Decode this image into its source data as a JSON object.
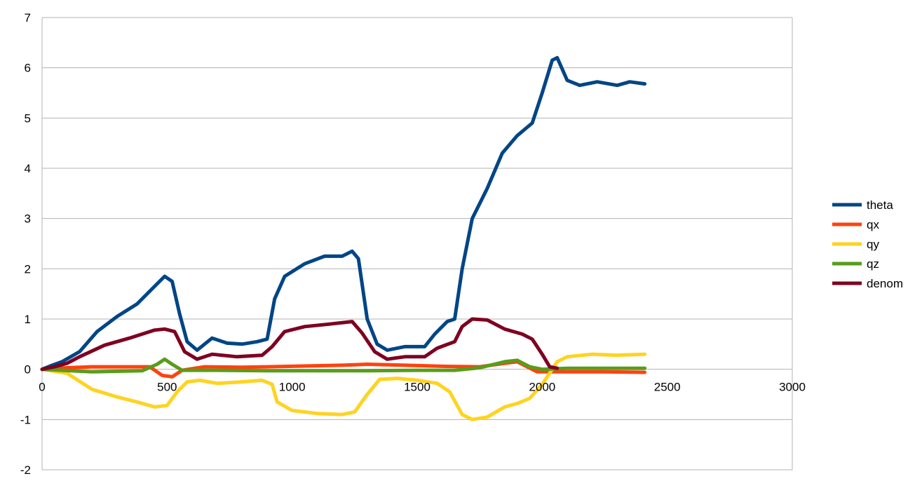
{
  "chart_data": {
    "type": "line",
    "title": "",
    "xlabel": "",
    "ylabel": "",
    "xlim": [
      0,
      3000
    ],
    "ylim": [
      -2,
      7
    ],
    "xticks": [
      0,
      500,
      1000,
      1500,
      2000,
      2500,
      3000
    ],
    "yticks": [
      -2,
      -1,
      0,
      1,
      2,
      3,
      4,
      5,
      6,
      7
    ],
    "grid": true,
    "legend_position": "right",
    "series": [
      {
        "name": "theta",
        "color": "#004586",
        "points": [
          [
            0,
            0
          ],
          [
            30,
            0.06
          ],
          [
            80,
            0.15
          ],
          [
            150,
            0.35
          ],
          [
            220,
            0.75
          ],
          [
            300,
            1.05
          ],
          [
            380,
            1.3
          ],
          [
            450,
            1.65
          ],
          [
            490,
            1.85
          ],
          [
            520,
            1.75
          ],
          [
            550,
            1.1
          ],
          [
            580,
            0.55
          ],
          [
            620,
            0.38
          ],
          [
            680,
            0.62
          ],
          [
            740,
            0.52
          ],
          [
            800,
            0.5
          ],
          [
            860,
            0.55
          ],
          [
            900,
            0.6
          ],
          [
            930,
            1.4
          ],
          [
            970,
            1.85
          ],
          [
            1050,
            2.1
          ],
          [
            1130,
            2.25
          ],
          [
            1200,
            2.25
          ],
          [
            1240,
            2.35
          ],
          [
            1265,
            2.2
          ],
          [
            1300,
            1.0
          ],
          [
            1340,
            0.5
          ],
          [
            1380,
            0.38
          ],
          [
            1450,
            0.45
          ],
          [
            1530,
            0.45
          ],
          [
            1570,
            0.7
          ],
          [
            1620,
            0.95
          ],
          [
            1650,
            1.0
          ],
          [
            1680,
            2.0
          ],
          [
            1720,
            3.0
          ],
          [
            1780,
            3.6
          ],
          [
            1840,
            4.3
          ],
          [
            1900,
            4.65
          ],
          [
            1960,
            4.9
          ],
          [
            2000,
            5.5
          ],
          [
            2040,
            6.15
          ],
          [
            2060,
            6.2
          ],
          [
            2100,
            5.75
          ],
          [
            2150,
            5.65
          ],
          [
            2220,
            5.72
          ],
          [
            2300,
            5.65
          ],
          [
            2350,
            5.72
          ],
          [
            2410,
            5.68
          ]
        ]
      },
      {
        "name": "qx",
        "color": "#ff420e",
        "points": [
          [
            0,
            0
          ],
          [
            100,
            0.03
          ],
          [
            200,
            0.05
          ],
          [
            350,
            0.05
          ],
          [
            430,
            0.05
          ],
          [
            480,
            -0.12
          ],
          [
            520,
            -0.15
          ],
          [
            560,
            -0.02
          ],
          [
            650,
            0.05
          ],
          [
            800,
            0.04
          ],
          [
            1000,
            0.06
          ],
          [
            1200,
            0.08
          ],
          [
            1300,
            0.1
          ],
          [
            1450,
            0.08
          ],
          [
            1600,
            0.06
          ],
          [
            1750,
            0.05
          ],
          [
            1850,
            0.12
          ],
          [
            1900,
            0.15
          ],
          [
            1940,
            0.05
          ],
          [
            1980,
            -0.05
          ],
          [
            2100,
            -0.05
          ],
          [
            2250,
            -0.05
          ],
          [
            2410,
            -0.06
          ]
        ]
      },
      {
        "name": "qy",
        "color": "#ffd320",
        "points": [
          [
            0,
            0
          ],
          [
            100,
            -0.08
          ],
          [
            200,
            -0.4
          ],
          [
            300,
            -0.55
          ],
          [
            380,
            -0.65
          ],
          [
            450,
            -0.75
          ],
          [
            500,
            -0.72
          ],
          [
            540,
            -0.45
          ],
          [
            580,
            -0.25
          ],
          [
            630,
            -0.22
          ],
          [
            700,
            -0.28
          ],
          [
            800,
            -0.25
          ],
          [
            880,
            -0.22
          ],
          [
            920,
            -0.3
          ],
          [
            940,
            -0.65
          ],
          [
            1000,
            -0.82
          ],
          [
            1100,
            -0.88
          ],
          [
            1200,
            -0.9
          ],
          [
            1250,
            -0.85
          ],
          [
            1300,
            -0.5
          ],
          [
            1350,
            -0.2
          ],
          [
            1420,
            -0.18
          ],
          [
            1500,
            -0.22
          ],
          [
            1580,
            -0.28
          ],
          [
            1630,
            -0.45
          ],
          [
            1680,
            -0.9
          ],
          [
            1720,
            -1.0
          ],
          [
            1780,
            -0.95
          ],
          [
            1850,
            -0.75
          ],
          [
            1900,
            -0.68
          ],
          [
            1950,
            -0.58
          ],
          [
            2000,
            -0.3
          ],
          [
            2060,
            0.15
          ],
          [
            2100,
            0.25
          ],
          [
            2200,
            0.3
          ],
          [
            2300,
            0.28
          ],
          [
            2410,
            0.3
          ]
        ]
      },
      {
        "name": "qz",
        "color": "#579d1c",
        "points": [
          [
            0,
            0
          ],
          [
            200,
            -0.05
          ],
          [
            400,
            -0.03
          ],
          [
            460,
            0.1
          ],
          [
            490,
            0.2
          ],
          [
            520,
            0.1
          ],
          [
            560,
            -0.02
          ],
          [
            700,
            -0.02
          ],
          [
            900,
            -0.03
          ],
          [
            1100,
            -0.03
          ],
          [
            1300,
            -0.03
          ],
          [
            1500,
            -0.02
          ],
          [
            1650,
            -0.02
          ],
          [
            1750,
            0.03
          ],
          [
            1850,
            0.15
          ],
          [
            1900,
            0.18
          ],
          [
            1950,
            0.05
          ],
          [
            2000,
            0.0
          ],
          [
            2100,
            0.02
          ],
          [
            2250,
            0.02
          ],
          [
            2410,
            0.02
          ]
        ]
      },
      {
        "name": "denom",
        "color": "#7e0021",
        "points": [
          [
            0,
            0
          ],
          [
            50,
            0.05
          ],
          [
            100,
            0.12
          ],
          [
            150,
            0.25
          ],
          [
            250,
            0.48
          ],
          [
            350,
            0.62
          ],
          [
            450,
            0.78
          ],
          [
            490,
            0.8
          ],
          [
            530,
            0.75
          ],
          [
            570,
            0.35
          ],
          [
            620,
            0.2
          ],
          [
            680,
            0.3
          ],
          [
            780,
            0.25
          ],
          [
            880,
            0.28
          ],
          [
            920,
            0.45
          ],
          [
            970,
            0.75
          ],
          [
            1050,
            0.85
          ],
          [
            1150,
            0.9
          ],
          [
            1240,
            0.95
          ],
          [
            1280,
            0.72
          ],
          [
            1330,
            0.35
          ],
          [
            1380,
            0.2
          ],
          [
            1450,
            0.25
          ],
          [
            1530,
            0.25
          ],
          [
            1580,
            0.42
          ],
          [
            1650,
            0.55
          ],
          [
            1680,
            0.85
          ],
          [
            1720,
            1.0
          ],
          [
            1780,
            0.98
          ],
          [
            1850,
            0.8
          ],
          [
            1920,
            0.7
          ],
          [
            1960,
            0.6
          ],
          [
            2000,
            0.3
          ],
          [
            2030,
            0.05
          ],
          [
            2060,
            0.02
          ]
        ]
      }
    ]
  }
}
